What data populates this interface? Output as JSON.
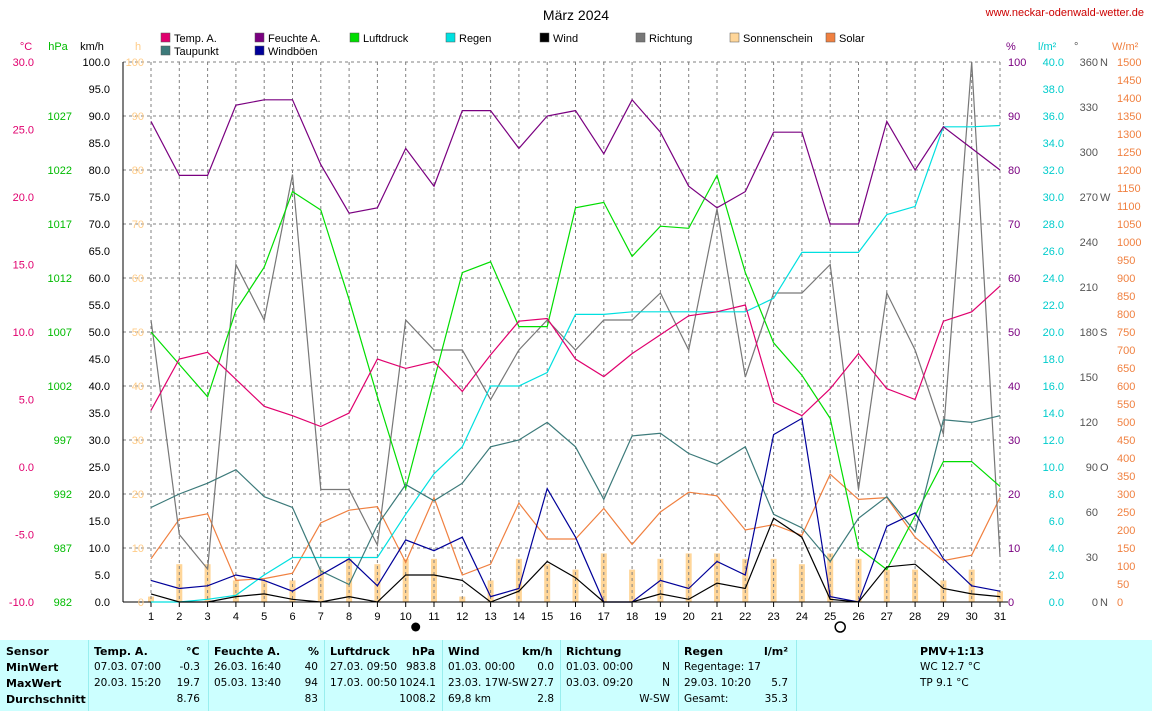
{
  "title": "März 2024",
  "site": "www.neckar-odenwald-wetter.de",
  "colors": {
    "temp": "#e0006e",
    "dew": "#3c7a7a",
    "hum": "#7a0080",
    "gust": "#000099",
    "press": "#00dd00",
    "rain": "#00e0e0",
    "wind": "#000000",
    "dir": "#777777",
    "sun": "#ffd699",
    "solar": "#f08040",
    "grid": "#808080",
    "tablebg": "#ccffff"
  },
  "legend": [
    {
      "label": "Temp. A.",
      "color": "#e0006e"
    },
    {
      "label": "Feuchte A.",
      "color": "#7a0080"
    },
    {
      "label": "Luftdruck",
      "color": "#00dd00"
    },
    {
      "label": "Regen",
      "color": "#00e0e0"
    },
    {
      "label": "Wind",
      "color": "#000000"
    },
    {
      "label": "Richtung",
      "color": "#777777"
    },
    {
      "label": "Sonnenschein",
      "color": "#ffd699"
    },
    {
      "label": "Solar",
      "color": "#f08040"
    },
    {
      "label": "Taupunkt",
      "color": "#3c7a7a"
    },
    {
      "label": "Windböen",
      "color": "#000099"
    }
  ],
  "axes": {
    "temp": {
      "unit": "°C",
      "ticks": [
        "30.0",
        "25.0",
        "20.0",
        "15.0",
        "10.0",
        "5.0",
        "0.0",
        "-5.0",
        "-10.0"
      ],
      "color": "#e0006e"
    },
    "press": {
      "unit": "hPa",
      "ticks": [
        "1027",
        "1022",
        "1017",
        "1012",
        "1007",
        "1002",
        "997",
        "992",
        "987",
        "982"
      ],
      "color": "#00bb00"
    },
    "wind": {
      "unit": "km/h",
      "ticks": [
        "100.0",
        "95.0",
        "90.0",
        "85.0",
        "80.0",
        "75.0",
        "70.0",
        "65.0",
        "60.0",
        "55.0",
        "50.0",
        "45.0",
        "40.0",
        "35.0",
        "30.0",
        "25.0",
        "20.0",
        "15.0",
        "10.0",
        "5.0",
        "0.0"
      ],
      "color": "#000000"
    },
    "sun": {
      "unit": "h",
      "ticks": [
        "100",
        "90",
        "80",
        "70",
        "60",
        "50",
        "40",
        "30",
        "20",
        "10",
        "0"
      ],
      "color": "#ffcc88"
    },
    "hum": {
      "unit": "%",
      "ticks": [
        "100",
        "90",
        "80",
        "70",
        "60",
        "50",
        "40",
        "30",
        "20",
        "10",
        "0"
      ],
      "color": "#7a0080"
    },
    "rain": {
      "unit": "l/m²",
      "ticks": [
        "40.0",
        "38.0",
        "36.0",
        "34.0",
        "32.0",
        "30.0",
        "28.0",
        "26.0",
        "24.0",
        "22.0",
        "20.0",
        "18.0",
        "16.0",
        "14.0",
        "12.0",
        "10.0",
        "8.0",
        "6.0",
        "4.0",
        "2.0",
        "0.0"
      ],
      "color": "#00cccc"
    },
    "dir": {
      "unit": "°",
      "ticks": [
        "360",
        "330",
        "300",
        "270",
        "240",
        "210",
        "180",
        "150",
        "120",
        "90",
        "60",
        "30",
        "0"
      ],
      "letters": [
        "N",
        "",
        "",
        "W",
        "",
        "",
        "S",
        "",
        "",
        "O",
        "",
        "",
        "N"
      ],
      "color": "#555555"
    },
    "solar": {
      "unit": "W/m²",
      "ticks": [
        "1500",
        "1450",
        "1400",
        "1350",
        "1300",
        "1250",
        "1200",
        "1150",
        "1100",
        "1050",
        "1000",
        "950",
        "900",
        "850",
        "800",
        "750",
        "700",
        "650",
        "600",
        "550",
        "500",
        "450",
        "400",
        "350",
        "300",
        "250",
        "200",
        "150",
        "100",
        "50",
        "0"
      ],
      "color": "#f08040"
    }
  },
  "chart_data": {
    "type": "line",
    "title": "März 2024",
    "x": [
      1,
      2,
      3,
      4,
      5,
      6,
      7,
      8,
      9,
      10,
      11,
      12,
      13,
      14,
      15,
      16,
      17,
      18,
      19,
      20,
      21,
      22,
      23,
      24,
      25,
      26,
      27,
      28,
      29,
      30,
      31
    ],
    "series": [
      {
        "name": "Temp. A.",
        "unit": "°C",
        "values": [
          4.2,
          8.0,
          8.5,
          6.5,
          4.5,
          3.8,
          3.0,
          4.0,
          8.0,
          7.3,
          7.8,
          5.6,
          8.3,
          10.8,
          11.0,
          8.0,
          6.7,
          8.4,
          9.8,
          11.2,
          11.5,
          12.0,
          4.8,
          3.8,
          5.8,
          8.4,
          5.8,
          5.0,
          10.8,
          11.5,
          13.4
        ]
      },
      {
        "name": "Taupunkt",
        "unit": "°C",
        "values": [
          -3.0,
          -2.0,
          -1.2,
          -0.2,
          -2.2,
          -3.0,
          -7.7,
          -8.7,
          -4.3,
          -1.3,
          -2.5,
          -1.2,
          1.5,
          2.0,
          3.3,
          1.5,
          -2.4,
          2.3,
          2.5,
          1.0,
          0.2,
          1.5,
          -3.5,
          -4.5,
          -7.0,
          -3.8,
          -2.2,
          -4.8,
          3.5,
          3.3,
          3.8
        ]
      },
      {
        "name": "Feuchte A.",
        "unit": "%",
        "values": [
          89,
          79,
          79,
          92,
          93,
          93,
          81,
          72,
          73,
          84,
          77,
          91,
          91,
          84,
          90,
          91,
          83,
          93,
          87,
          77,
          73,
          76,
          87,
          87,
          70,
          70,
          89,
          80,
          88,
          84,
          80
        ]
      },
      {
        "name": "Luftdruck",
        "unit": "hPa",
        "values": [
          1007.0,
          1004.0,
          1001.0,
          1009.0,
          1013.0,
          1020.0,
          1018.3,
          1010.0,
          1001.0,
          992.5,
          1002.5,
          1012.5,
          1013.5,
          1007.5,
          1007.5,
          1018.5,
          1019.0,
          1014.0,
          1016.8,
          1016.6,
          1021.5,
          1012.5,
          1006.0,
          1003.0,
          999.0,
          987.0,
          985.0,
          990.0,
          995.0,
          995.0,
          992.7
        ]
      },
      {
        "name": "Regen",
        "unit": "l/m²",
        "values": [
          0.0,
          0.0,
          0.2,
          0.5,
          2.0,
          3.3,
          3.3,
          3.3,
          3.3,
          6.5,
          9.5,
          11.5,
          16.0,
          16.0,
          17.0,
          21.3,
          21.3,
          21.5,
          21.5,
          21.5,
          21.5,
          21.5,
          22.5,
          25.9,
          25.9,
          25.9,
          28.7,
          29.3,
          35.2,
          35.2,
          35.3
        ]
      },
      {
        "name": "Wind",
        "unit": "km/h",
        "values": [
          1.5,
          0.0,
          0.0,
          1.0,
          1.5,
          0.5,
          0.0,
          1.0,
          0.0,
          5.0,
          5.0,
          4.0,
          0.0,
          2.0,
          7.5,
          4.5,
          0.0,
          0.0,
          1.5,
          0.5,
          3.5,
          2.5,
          15.5,
          12.0,
          0.5,
          0.0,
          6.5,
          7.0,
          2.5,
          1.5,
          1.0
        ]
      },
      {
        "name": "Windböen",
        "unit": "km/h",
        "values": [
          4.0,
          2.5,
          3.0,
          5.0,
          4.0,
          2.0,
          5.0,
          8.0,
          3.0,
          11.5,
          9.5,
          12.0,
          1.0,
          2.5,
          21.0,
          12.0,
          0.0,
          0.0,
          4.0,
          2.5,
          7.5,
          5.0,
          31.0,
          34.0,
          1.0,
          0.0,
          14.0,
          16.5,
          8.0,
          3.0,
          2.0
        ]
      },
      {
        "name": "Richtung",
        "unit": "°",
        "values": [
          188,
          45,
          22,
          225,
          188,
          285,
          75,
          75,
          38,
          188,
          168,
          168,
          135,
          168,
          188,
          168,
          188,
          188,
          206,
          168,
          262,
          150,
          206,
          206,
          225,
          75,
          206,
          168,
          112,
          360,
          30
        ]
      },
      {
        "name": "Sonnenschein",
        "unit": "h",
        "values": [
          1,
          7,
          7,
          4,
          4,
          4,
          6,
          8,
          7,
          8,
          8,
          1,
          4,
          8,
          7,
          6,
          9,
          6,
          8,
          9,
          9,
          8,
          8,
          7,
          9,
          8,
          6,
          6,
          4,
          6,
          2
        ]
      },
      {
        "name": "Solar",
        "unit": "W/m²",
        "values": [
          120,
          230,
          245,
          60,
          65,
          80,
          220,
          255,
          265,
          110,
          290,
          75,
          105,
          275,
          175,
          175,
          260,
          160,
          250,
          305,
          295,
          200,
          215,
          185,
          355,
          285,
          290,
          180,
          115,
          130,
          290
        ]
      }
    ],
    "ylim": {
      "temp": [
        -10,
        30
      ],
      "press": [
        982,
        1032
      ],
      "wind": [
        0,
        100
      ],
      "hum": [
        0,
        100
      ],
      "rain": [
        0,
        40
      ],
      "dir": [
        0,
        360
      ],
      "solar": [
        0,
        1500
      ],
      "sun": [
        0,
        100
      ]
    },
    "grid": true,
    "legend_position": "top"
  },
  "markers": {
    "moon_new_day": 10,
    "moon_full_day": 25
  },
  "table": {
    "headers": {
      "sensor": "Sensor",
      "temp": "Temp. A.",
      "temp_unit": "°C",
      "hum": "Feuchte A.",
      "hum_unit": "%",
      "press": "Luftdruck",
      "press_unit": "hPa",
      "wind": "Wind",
      "wind_unit": "km/h",
      "dir": "Richtung",
      "rain": "Regen",
      "rain_unit": "l/m²",
      "pmv": "PMV+1:13"
    },
    "rows": [
      {
        "label": "MinWert",
        "temp_time": "07.03.  07:00",
        "temp_val": "-0.3",
        "hum_time": "26.03.  16:40",
        "hum_val": "40",
        "press_time": "27.03.  09:50",
        "press_val": "983.8",
        "wind_time": "01.03.  00:00",
        "wind_val": "0.0",
        "dir_time": "01.03.  00:00",
        "dir_val": "N",
        "rain_time": "Regentage: 17",
        "rain_val": "",
        "pmv": "WC 12.7 °C"
      },
      {
        "label": "MaxWert",
        "temp_time": "20.03.  15:20",
        "temp_val": "19.7",
        "hum_time": "05.03.  13:40",
        "hum_val": "94",
        "press_time": "17.03.  00:50",
        "press_val": "1024.1",
        "wind_time": "23.03.  17W-SW",
        "wind_val": "27.7",
        "dir_time": "03.03.  09:20",
        "dir_val": "N",
        "rain_time": "29.03.  10:20",
        "rain_val": "5.7",
        "pmv": "TP 9.1 °C"
      },
      {
        "label": "Durchschnitt",
        "temp_time": "",
        "temp_val": "8.76",
        "hum_time": "",
        "hum_val": "83",
        "press_time": "",
        "press_val": "1008.2",
        "wind_time": "69,8 km",
        "wind_val": "2.8",
        "dir_time": "",
        "dir_val": "W-SW",
        "rain_time": "Gesamt:",
        "rain_val": "35.3",
        "pmv": ""
      }
    ]
  }
}
